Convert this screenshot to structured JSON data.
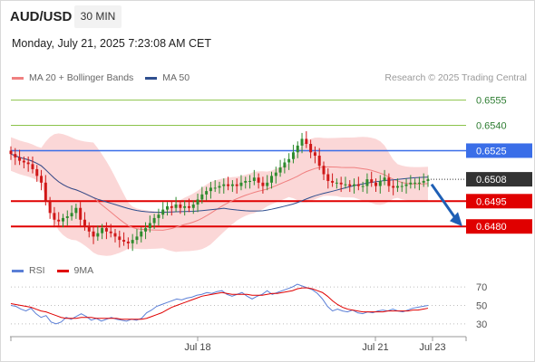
{
  "header": {
    "symbol": "AUD/USD",
    "timeframe": "30 MIN",
    "datetime": "Monday, July 21, 2025 7:23:08 AM CET"
  },
  "legend": [
    {
      "label": "MA 20 + Bollinger Bands",
      "color": "#f08080"
    },
    {
      "label": "MA 50",
      "color": "#2f4f8f"
    }
  ],
  "copyright": "Research © 2025 Trading Central",
  "rsi_legend": [
    {
      "label": "RSI",
      "color": "#5b7fd6"
    },
    {
      "label": "9MA",
      "color": "#e00000"
    }
  ],
  "colors": {
    "up": "#2e8b2e",
    "down": "#d01818",
    "support": "#e00000",
    "resistance": "#3a6ee8",
    "target_line": "#8bc34a",
    "band": "#fbd7d7",
    "ma20": "#f08080",
    "ma50": "#2f4f8f",
    "arrow": "#1e5fb5",
    "rsi": "#5b7fd6",
    "rsi_ma": "#e00000"
  },
  "chart_data": [
    {
      "type": "candlestick",
      "title": "AUD/USD 30 MIN",
      "x_labels": [
        "Jul 18",
        "Jul 21",
        "Jul 23"
      ],
      "ylim": [
        0.6464,
        0.6565
      ],
      "price_levels": [
        {
          "value": 0.6555,
          "label": "0.6555",
          "kind": "target"
        },
        {
          "value": 0.654,
          "label": "0.6540",
          "kind": "target"
        },
        {
          "value": 0.6525,
          "label": "0.6525",
          "kind": "resistance"
        },
        {
          "value": 0.6508,
          "label": "0.6508",
          "kind": "last"
        },
        {
          "value": 0.6495,
          "label": "0.6495",
          "kind": "support"
        },
        {
          "value": 0.648,
          "label": "0.6480",
          "kind": "support"
        }
      ],
      "forecast_arrow": {
        "from": 0.6505,
        "to": 0.648
      },
      "closes": [
        0.6523,
        0.6521,
        0.6519,
        0.6518,
        0.6517,
        0.6514,
        0.651,
        0.6506,
        0.6495,
        0.6488,
        0.6484,
        0.6483,
        0.6485,
        0.6486,
        0.6488,
        0.6491,
        0.6484,
        0.648,
        0.6477,
        0.6474,
        0.6476,
        0.6479,
        0.6477,
        0.6476,
        0.6474,
        0.6472,
        0.6471,
        0.647,
        0.6472,
        0.6474,
        0.6477,
        0.6479,
        0.6482,
        0.6485,
        0.6487,
        0.649,
        0.6492,
        0.6491,
        0.6493,
        0.6491,
        0.6492,
        0.6491,
        0.6493,
        0.6496,
        0.6499,
        0.6501,
        0.6503,
        0.6503,
        0.6504,
        0.6505,
        0.6504,
        0.6505,
        0.6504,
        0.6506,
        0.6507,
        0.6507,
        0.6509,
        0.6506,
        0.6504,
        0.6506,
        0.651,
        0.6512,
        0.6515,
        0.6518,
        0.652,
        0.6524,
        0.6528,
        0.6532,
        0.6529,
        0.6524,
        0.6522,
        0.6516,
        0.6511,
        0.6507,
        0.6506,
        0.6506,
        0.6505,
        0.6505,
        0.6504,
        0.6505,
        0.6504,
        0.6504,
        0.6508,
        0.6506,
        0.6504,
        0.6507,
        0.6509,
        0.6504,
        0.6503,
        0.6504,
        0.6504,
        0.6505,
        0.6506,
        0.6506,
        0.6506,
        0.6507,
        0.6508
      ]
    },
    {
      "type": "line",
      "title": "RSI",
      "x_labels": [
        "Jul 18",
        "Jul 21",
        "Jul 23"
      ],
      "ylim": [
        23,
        77
      ],
      "y_ticks": [
        70,
        50,
        30
      ],
      "series": [
        {
          "name": "RSI",
          "values": [
            50,
            49,
            46,
            44,
            47,
            41,
            37,
            39,
            32,
            30,
            32,
            37,
            35,
            38,
            41,
            38,
            34,
            36,
            33,
            35,
            37,
            35,
            34,
            33,
            35,
            34,
            36,
            42,
            45,
            49,
            51,
            53,
            55,
            57,
            56,
            58,
            59,
            61,
            62,
            64,
            63,
            65,
            66,
            62,
            60,
            62,
            64,
            60,
            57,
            60,
            62,
            66,
            62,
            64,
            66,
            68,
            70,
            73,
            71,
            69,
            67,
            63,
            57,
            49,
            44,
            46,
            44,
            43,
            45,
            42,
            41,
            43,
            42,
            44,
            45,
            44,
            46,
            44,
            43,
            45,
            47,
            48,
            49,
            50
          ]
        },
        {
          "name": "9MA",
          "values": [
            52,
            51,
            50,
            49,
            48,
            46,
            44,
            43,
            41,
            39,
            37,
            36,
            36,
            36,
            37,
            37,
            37,
            36,
            36,
            36,
            36,
            36,
            35,
            35,
            35,
            35,
            35,
            36,
            38,
            40,
            42,
            45,
            48,
            50,
            52,
            54,
            56,
            58,
            60,
            61,
            62,
            63,
            64,
            63,
            62,
            62,
            62,
            62,
            61,
            61,
            61,
            62,
            63,
            63,
            64,
            65,
            66,
            68,
            69,
            69,
            68,
            66,
            64,
            60,
            55,
            51,
            48,
            46,
            45,
            44,
            43,
            43,
            43,
            43,
            43,
            44,
            44,
            44,
            44,
            44,
            45,
            45,
            46,
            47
          ]
        }
      ]
    }
  ]
}
